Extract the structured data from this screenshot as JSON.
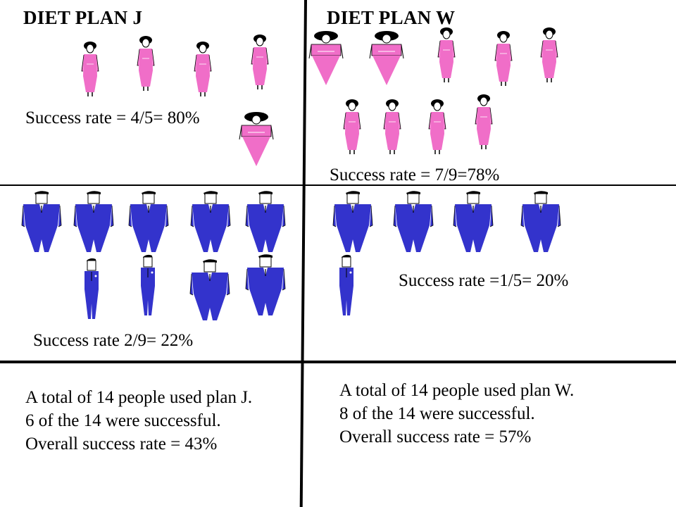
{
  "plan_j": {
    "title": "DIET PLAN J",
    "women_rate": "Success rate = 4/5= 80%",
    "men_rate": "Success rate 2/9= 22%",
    "summary": [
      "A total of 14 people used plan J.",
      "6 of the 14 were successful.",
      "Overall success rate = 43%"
    ]
  },
  "plan_w": {
    "title": "DIET PLAN W",
    "women_rate": "Success rate = 7/9=78%",
    "men_rate": "Success rate =1/5= 20%",
    "summary": [
      "A total of 14 people used plan W.",
      "8 of the 14 were successful.",
      "Overall success rate = 57%"
    ]
  },
  "colors": {
    "women": "#f06ec8",
    "men": "#3333cc"
  },
  "icons": {
    "woman": "woman-figure-icon",
    "man": "man-figure-icon"
  }
}
